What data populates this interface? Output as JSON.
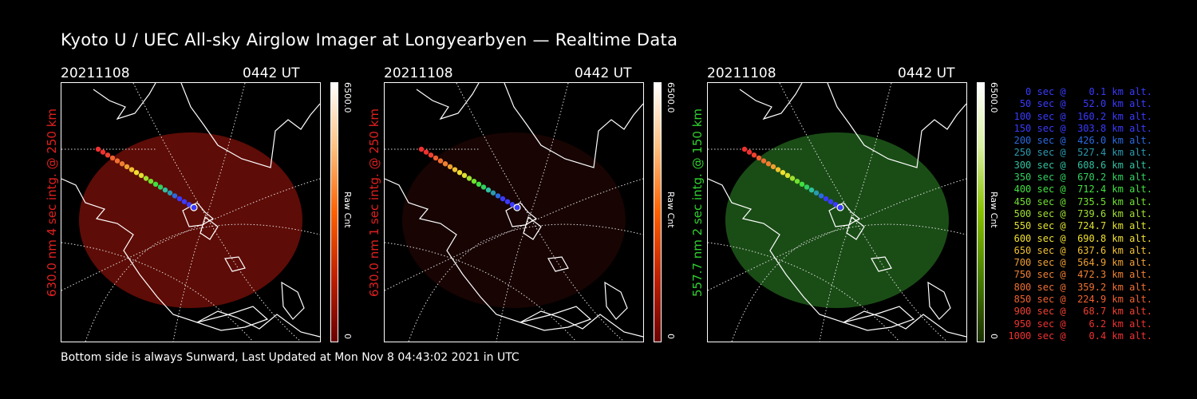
{
  "title": "Kyoto U / UEC All-sky Airglow Imager at Longyearbyen — Realtime Data",
  "footer": "Bottom side is always Sunward, Last Updated at Mon Nov  8 04:43:02 2021 in UTC",
  "panels": [
    {
      "date": "20211108",
      "time": "0442 UT",
      "ylabel": "630.0 nm 4 sec intg. @ 250 km",
      "ylabel_color": "#e02020",
      "cbar_max": "6500.0",
      "cbar_unit": "Raw Cnt",
      "cbar_min": "0",
      "image_color": "#6e0e08",
      "image_opacity": 0.85,
      "cbar_colors": [
        "#6a0000",
        "#c02000",
        "#ff6000",
        "#ffc080",
        "#ffffff"
      ]
    },
    {
      "date": "20211108",
      "time": "0442 UT",
      "ylabel": "630.0 nm 1 sec intg. @ 250 km",
      "ylabel_color": "#e02020",
      "cbar_max": "6500.0",
      "cbar_unit": "Raw Cnt",
      "cbar_min": "0",
      "image_color": "#1a0403",
      "image_opacity": 0.9,
      "cbar_colors": [
        "#6a0000",
        "#c02000",
        "#ff6000",
        "#ffc080",
        "#ffffff"
      ]
    },
    {
      "date": "20211108",
      "time": "0442 UT",
      "ylabel": "557.7 nm 2 sec intg. @ 150 km",
      "ylabel_color": "#30d030",
      "cbar_max": "6500.0",
      "cbar_unit": "Raw Cnt",
      "cbar_min": "0",
      "image_color": "#1f5a1a",
      "image_opacity": 0.85,
      "cbar_colors": [
        "#1a3000",
        "#4a8000",
        "#88c000",
        "#d8f0a0",
        "#ffffff"
      ]
    }
  ],
  "legend": [
    {
      "text": "   0 sec @    0.1 km alt.",
      "color": "#3a3aff"
    },
    {
      "text": "  50 sec @   52.0 km alt.",
      "color": "#3a3aff"
    },
    {
      "text": " 100 sec @  160.2 km alt.",
      "color": "#3a3aff"
    },
    {
      "text": " 150 sec @  303.8 km alt.",
      "color": "#3a3aff"
    },
    {
      "text": " 200 sec @  426.0 km alt.",
      "color": "#2a6ae0"
    },
    {
      "text": " 250 sec @  527.4 km alt.",
      "color": "#2a9ab0"
    },
    {
      "text": " 300 sec @  608.6 km alt.",
      "color": "#30c0a0"
    },
    {
      "text": " 350 sec @  670.2 km alt.",
      "color": "#30d060"
    },
    {
      "text": " 400 sec @  712.4 km alt.",
      "color": "#40e040"
    },
    {
      "text": " 450 sec @  735.5 km alt.",
      "color": "#70e030"
    },
    {
      "text": " 500 sec @  739.6 km alt.",
      "color": "#a0e030"
    },
    {
      "text": " 550 sec @  724.7 km alt.",
      "color": "#e0e030"
    },
    {
      "text": " 600 sec @  690.8 km alt.",
      "color": "#f0e030"
    },
    {
      "text": " 650 sec @  637.6 km alt.",
      "color": "#f0c030"
    },
    {
      "text": " 700 sec @  564.9 km alt.",
      "color": "#f0a030"
    },
    {
      "text": " 750 sec @  472.3 km alt.",
      "color": "#f08030"
    },
    {
      "text": " 800 sec @  359.2 km alt.",
      "color": "#f07030"
    },
    {
      "text": " 850 sec @  224.9 km alt.",
      "color": "#f06030"
    },
    {
      "text": " 900 sec @   68.7 km alt.",
      "color": "#f04030"
    },
    {
      "text": " 950 sec @    6.2 km alt.",
      "color": "#f03030"
    },
    {
      "text": "1000 sec @    0.4 km alt.",
      "color": "#f03030"
    }
  ]
}
